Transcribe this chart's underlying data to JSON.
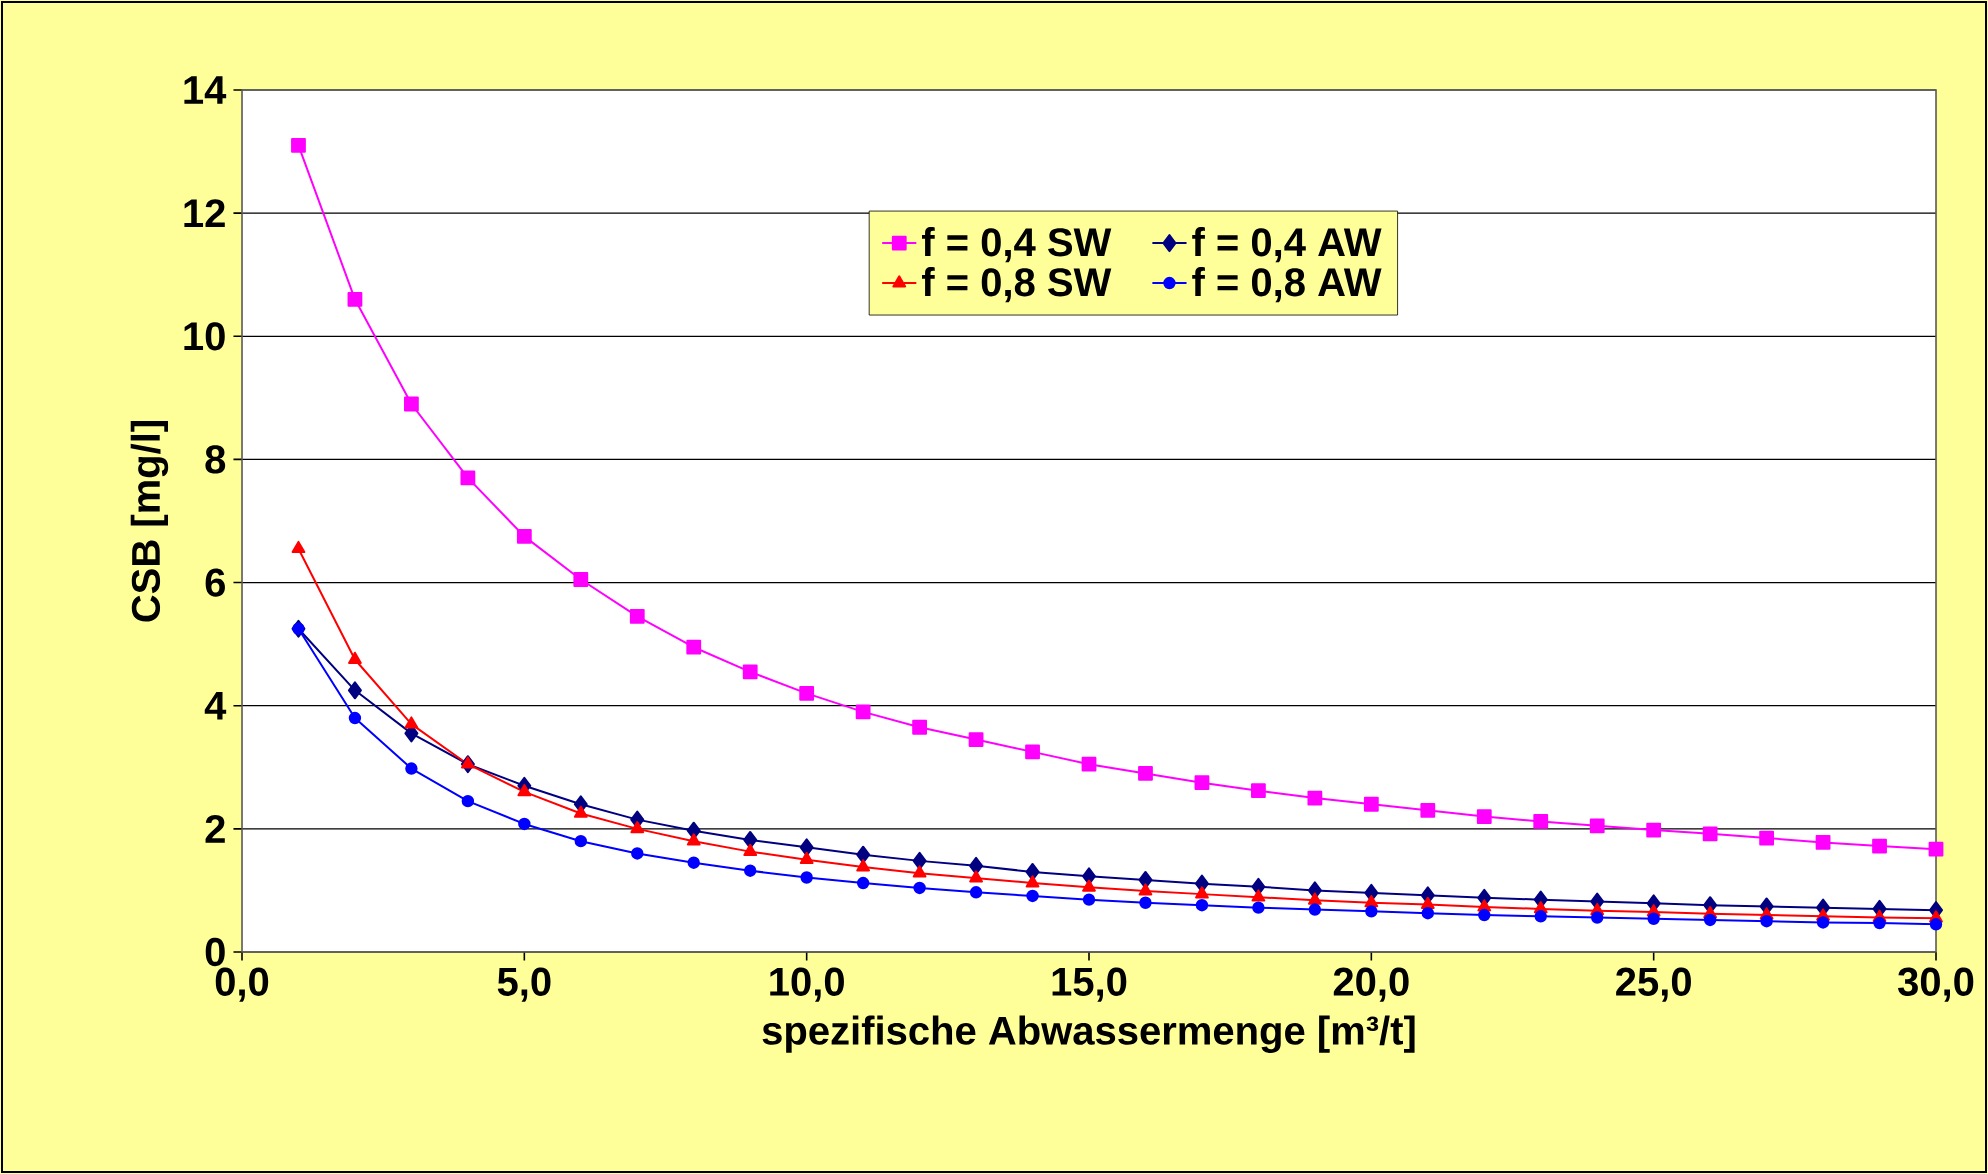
{
  "chart_data": {
    "type": "line",
    "xlabel": "spezifische Abwassermenge [m³/t]",
    "ylabel": "CSB [mg/l]",
    "x": [
      1,
      2,
      3,
      4,
      5,
      6,
      7,
      8,
      9,
      10,
      11,
      12,
      13,
      14,
      15,
      16,
      17,
      18,
      19,
      20,
      21,
      22,
      23,
      24,
      25,
      26,
      27,
      28,
      29,
      30
    ],
    "series": [
      {
        "name": "f = 0,4 SW",
        "color": "#ff00ff",
        "marker": "square",
        "values": [
          13.1,
          10.6,
          8.9,
          7.7,
          6.75,
          6.05,
          5.45,
          4.95,
          4.55,
          4.2,
          3.9,
          3.65,
          3.45,
          3.25,
          3.05,
          2.9,
          2.75,
          2.62,
          2.5,
          2.4,
          2.3,
          2.2,
          2.12,
          2.05,
          1.98,
          1.92,
          1.85,
          1.78,
          1.72,
          1.67
        ]
      },
      {
        "name": "f = 0,4 AW",
        "color": "#000080",
        "marker": "diamond",
        "values": [
          5.25,
          4.25,
          3.55,
          3.05,
          2.7,
          2.4,
          2.15,
          1.97,
          1.82,
          1.7,
          1.58,
          1.48,
          1.4,
          1.3,
          1.23,
          1.17,
          1.11,
          1.06,
          1.0,
          0.96,
          0.92,
          0.88,
          0.85,
          0.82,
          0.79,
          0.76,
          0.74,
          0.72,
          0.7,
          0.68
        ]
      },
      {
        "name": "f = 0,8 SW",
        "color": "#ff0000",
        "marker": "triangle",
        "values": [
          6.55,
          4.75,
          3.7,
          3.05,
          2.6,
          2.25,
          2.0,
          1.8,
          1.63,
          1.5,
          1.38,
          1.28,
          1.2,
          1.12,
          1.05,
          0.99,
          0.94,
          0.89,
          0.84,
          0.8,
          0.77,
          0.73,
          0.7,
          0.67,
          0.65,
          0.62,
          0.6,
          0.58,
          0.56,
          0.55
        ]
      },
      {
        "name": "f = 0,8 AW",
        "color": "#0000ff",
        "marker": "circle",
        "values": [
          5.25,
          3.8,
          2.98,
          2.45,
          2.08,
          1.8,
          1.6,
          1.45,
          1.32,
          1.21,
          1.12,
          1.04,
          0.97,
          0.91,
          0.85,
          0.8,
          0.76,
          0.72,
          0.69,
          0.66,
          0.63,
          0.6,
          0.58,
          0.56,
          0.54,
          0.52,
          0.5,
          0.48,
          0.47,
          0.45
        ]
      }
    ],
    "xlim": [
      0,
      30
    ],
    "xticks": [
      {
        "value": 0,
        "label": "0,0"
      },
      {
        "value": 5,
        "label": "5,0"
      },
      {
        "value": 10,
        "label": "10,0"
      },
      {
        "value": 15,
        "label": "15,0"
      },
      {
        "value": 20,
        "label": "20,0"
      },
      {
        "value": 25,
        "label": "25,0"
      },
      {
        "value": 30,
        "label": "30,0"
      }
    ],
    "ylim": [
      0,
      14
    ],
    "yticks": [
      0,
      2,
      4,
      6,
      8,
      10,
      12,
      14
    ],
    "grid": "y",
    "legend": "top right",
    "line_style": "solid"
  }
}
